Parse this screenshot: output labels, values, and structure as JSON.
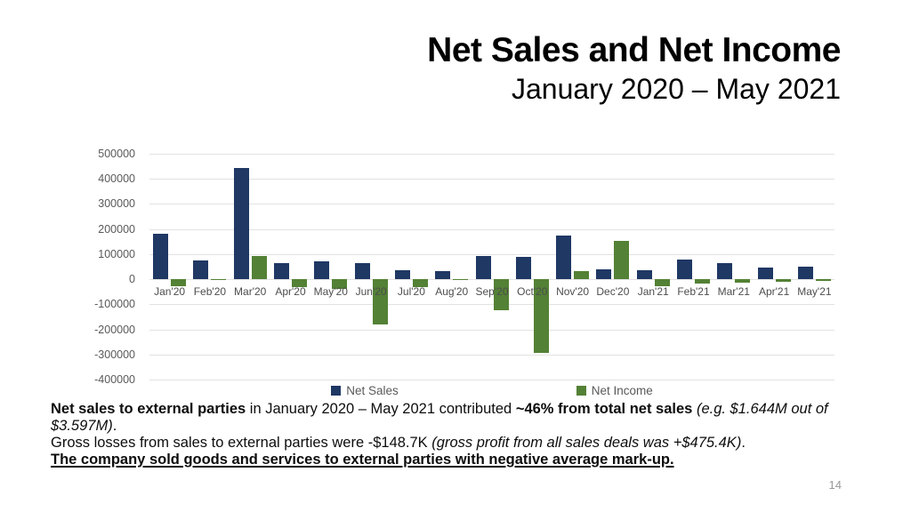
{
  "slide": {
    "title": "Net Sales and Net Income",
    "subtitle": "January 2020 – May 2021",
    "page_number": "14"
  },
  "chart_data": {
    "type": "bar",
    "title": "",
    "xlabel": "",
    "ylabel": "",
    "categories": [
      "Jan'20",
      "Feb'20",
      "Mar'20",
      "Apr'20",
      "May'20",
      "Jun'20",
      "Jul'20",
      "Aug'20",
      "Sep'20",
      "Oct'20",
      "Nov'20",
      "Dec'20",
      "Jan'21",
      "Feb'21",
      "Mar'21",
      "Apr'21",
      "May'21"
    ],
    "series": [
      {
        "name": "Net Sales",
        "color": "#1f3864",
        "values": [
          180000,
          75000,
          445000,
          63000,
          70000,
          64000,
          35000,
          31000,
          92000,
          90000,
          175000,
          38000,
          35000,
          77000,
          63000,
          45000,
          50000
        ]
      },
      {
        "name": "Net Income",
        "color": "#538135",
        "values": [
          -29000,
          -5000,
          92000,
          -32000,
          -38000,
          -182000,
          -30000,
          2000,
          -125000,
          -295000,
          32000,
          153000,
          -28000,
          -18000,
          -15000,
          -10000,
          -8000
        ]
      }
    ],
    "ylim": [
      -400000,
      500000
    ],
    "yticks": [
      500000,
      400000,
      300000,
      200000,
      100000,
      0,
      -100000,
      -200000,
      -300000,
      -400000
    ],
    "grid": true,
    "legend_position": "bottom",
    "colors": {
      "grid": "#e2e2e2",
      "axis_text": "#595959"
    }
  },
  "notes": {
    "paragraphs": [
      {
        "segments": [
          {
            "text": "Net sales to external parties",
            "bold": true
          },
          {
            "text": " in January 2020 – May 2021 contributed "
          },
          {
            "text": "~46% from total net sales",
            "bold": true
          },
          {
            "text": " "
          },
          {
            "text": "(e.g. $1.644M out of $3.597M)",
            "italic": true
          },
          {
            "text": "."
          }
        ]
      },
      {
        "segments": [
          {
            "text": "Gross losses from sales to external parties were -$148.7K "
          },
          {
            "text": "(gross profit from all sales deals was +$475.4K)",
            "italic": true
          },
          {
            "text": "."
          }
        ]
      },
      {
        "segments": [
          {
            "text": "The company sold goods and services to external parties with negative average mark-up.",
            "bold": true,
            "underline": true
          }
        ]
      }
    ]
  }
}
